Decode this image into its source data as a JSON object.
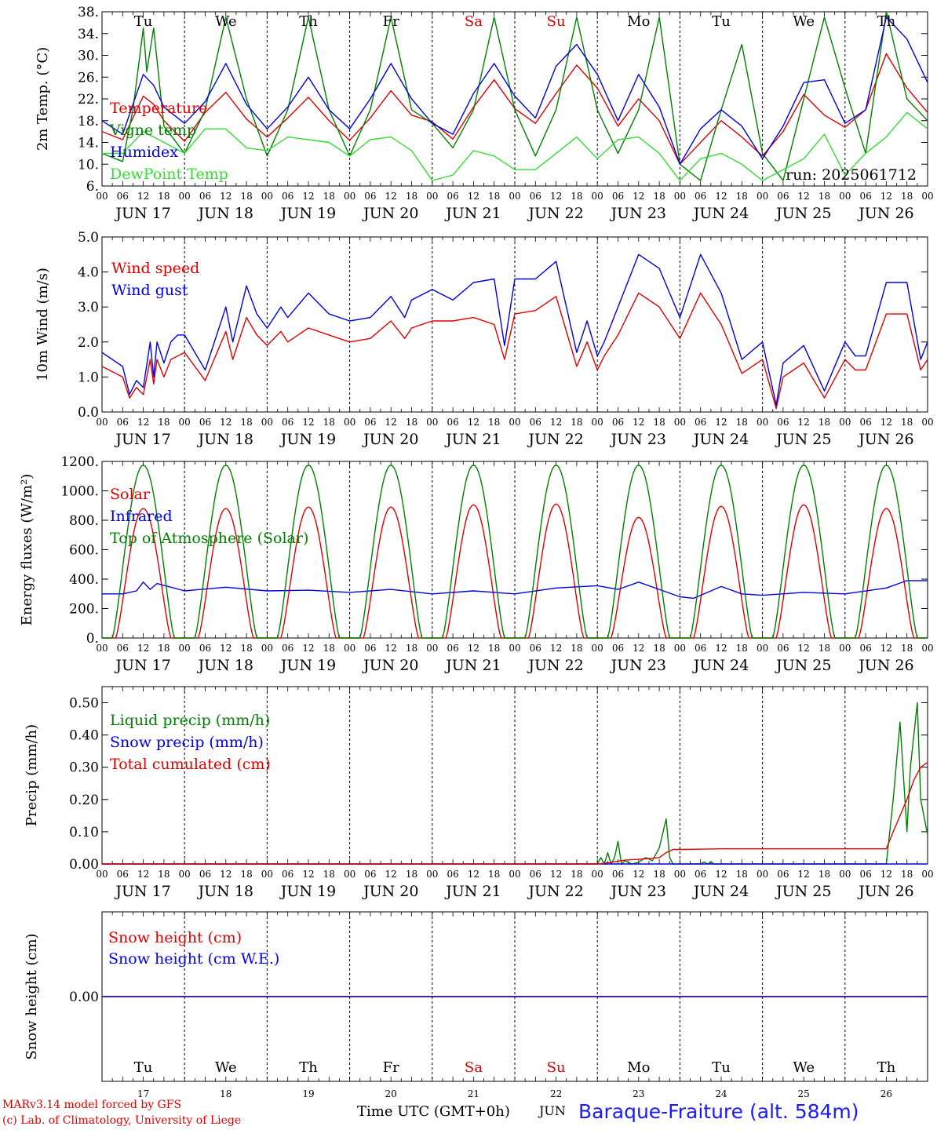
{
  "chart_data": {
    "type": "line",
    "run_label": "run: 2025061712",
    "time_axis": {
      "start_hour": 0,
      "end_hour": 240,
      "hour_tick_labels": [
        "00",
        "06",
        "12",
        "18"
      ],
      "date_labels": [
        "JUN 17",
        "JUN 18",
        "JUN 19",
        "JUN 20",
        "JUN 21",
        "JUN 22",
        "JUN 23",
        "JUN 24",
        "JUN 25",
        "JUN 26"
      ],
      "weekday_labels": [
        "Tu",
        "We",
        "Th",
        "Fr",
        "Sa",
        "Su",
        "Mo",
        "Tu",
        "We",
        "Th"
      ],
      "weekday_colors": [
        "#000000",
        "#000000",
        "#000000",
        "#000000",
        "#e00000",
        "#e00000",
        "#000000",
        "#000000",
        "#000000",
        "#000000"
      ],
      "day_numbers": [
        "17",
        "18",
        "19",
        "20",
        "21",
        "22",
        "23",
        "24",
        "25",
        "26"
      ]
    },
    "panels": [
      {
        "id": "temperature",
        "ylabel": "2m Temp. (°C)",
        "ylim": [
          6,
          38
        ],
        "yticks": [
          6,
          10,
          14,
          18,
          22,
          26,
          30,
          34,
          38
        ],
        "ytick_labels": [
          "6.",
          "10.",
          "14.",
          "18.",
          "22.",
          "26.",
          "30.",
          "34.",
          "38."
        ],
        "series": [
          {
            "name": "Temperature",
            "color": "#e00000",
            "x": [
              0,
              6,
              12,
              15,
              18,
              24,
              30,
              36,
              42,
              48,
              54,
              60,
              66,
              72,
              78,
              84,
              90,
              96,
              102,
              108,
              114,
              120,
              126,
              132,
              138,
              144,
              150,
              156,
              162,
              168,
              174,
              180,
              186,
              192,
              198,
              204,
              210,
              216,
              222,
              228,
              234,
              240
            ],
            "y": [
              16,
              14.5,
              22.5,
              21,
              18,
              14.2,
              19.5,
              23.2,
              18.3,
              15,
              18.5,
              22.3,
              18,
              14.4,
              18.5,
              23.5,
              19,
              17.8,
              14.6,
              20.5,
              25.5,
              20.2,
              17.5,
              23,
              28.2,
              24,
              17,
              22,
              18,
              10,
              14,
              18,
              15,
              11.5,
              16,
              22.8,
              19,
              16.8,
              20,
              30.3,
              24,
              19.5
            ]
          },
          {
            "name": "Vigne temp",
            "color": "#008000",
            "x": [
              0,
              6,
              9,
              12,
              13,
              15,
              18,
              24,
              30,
              36,
              42,
              48,
              54,
              60,
              66,
              72,
              78,
              84,
              90,
              96,
              102,
              108,
              114,
              120,
              126,
              132,
              138,
              144,
              150,
              156,
              162,
              168,
              174,
              180,
              186,
              192,
              198,
              204,
              210,
              216,
              222,
              228,
              234,
              240
            ],
            "y": [
              12,
              10.5,
              20,
              35,
              27,
              35,
              17,
              12,
              20,
              37,
              22,
              11.5,
              20,
              37,
              20,
              11.5,
              20,
              37,
              20,
              17.5,
              13,
              20,
              37,
              20,
              11.5,
              20,
              37,
              20,
              12,
              20,
              37,
              10,
              7,
              20,
              32,
              12,
              7,
              22,
              37,
              24,
              12,
              38,
              22,
              18
            ]
          },
          {
            "name": "Humidex",
            "color": "#0000e0",
            "x": [
              0,
              6,
              12,
              15,
              18,
              24,
              30,
              36,
              42,
              48,
              54,
              60,
              66,
              72,
              78,
              84,
              90,
              96,
              102,
              108,
              114,
              120,
              126,
              132,
              138,
              144,
              150,
              156,
              162,
              168,
              174,
              180,
              186,
              192,
              198,
              204,
              210,
              216,
              222,
              228,
              234,
              240
            ],
            "y": [
              18,
              15.5,
              26.5,
              24.5,
              20.5,
              17.5,
              21.5,
              28.5,
              21,
              16.5,
              20.5,
              26,
              20,
              16.5,
              22,
              28.5,
              22,
              17.5,
              15.5,
              23,
              28.5,
              22.5,
              18.5,
              28,
              32,
              26.5,
              18,
              26.5,
              20.5,
              10,
              16.5,
              20,
              17,
              11,
              17,
              25,
              25.5,
              17.5,
              20,
              37,
              33,
              25
            ]
          },
          {
            "name": "DewPoint Temp",
            "color": "#33dd33",
            "x": [
              0,
              6,
              12,
              18,
              24,
              30,
              36,
              42,
              48,
              54,
              60,
              66,
              72,
              78,
              84,
              90,
              96,
              102,
              108,
              114,
              120,
              126,
              132,
              138,
              144,
              150,
              156,
              162,
              168,
              174,
              180,
              186,
              192,
              198,
              204,
              210,
              216,
              222,
              228,
              234,
              240
            ],
            "y": [
              12,
              12,
              16,
              14,
              12,
              16.5,
              16.5,
              13,
              12.5,
              15,
              14.5,
              14,
              11.5,
              14.5,
              15,
              12.5,
              7,
              8,
              12.5,
              11.5,
              9,
              9,
              12,
              15,
              11,
              14.5,
              15,
              12,
              7,
              11,
              12,
              10,
              7,
              9,
              11,
              15.5,
              8,
              12,
              15,
              19.5,
              16.5
            ]
          }
        ]
      },
      {
        "id": "wind",
        "ylabel": "10m Wind (m/s)",
        "ylim": [
          0,
          5
        ],
        "yticks": [
          0,
          1,
          2,
          3,
          4,
          5
        ],
        "ytick_labels": [
          "0.0",
          "1.0",
          "2.0",
          "3.0",
          "4.0",
          "5.0"
        ],
        "series": [
          {
            "name": "Wind speed",
            "color": "#e00000",
            "x": [
              0,
              6,
              8,
              10,
              12,
              14,
              15,
              16,
              18,
              20,
              22,
              24,
              30,
              36,
              38,
              42,
              45,
              48,
              52,
              54,
              60,
              66,
              72,
              78,
              84,
              88,
              90,
              96,
              102,
              108,
              114,
              117,
              120,
              126,
              132,
              138,
              141,
              144,
              146,
              150,
              156,
              162,
              168,
              174,
              180,
              186,
              192,
              196,
              198,
              204,
              210,
              216,
              219,
              222,
              228,
              234,
              238,
              240
            ],
            "y": [
              1.3,
              1.0,
              0.4,
              0.7,
              0.5,
              1.5,
              0.8,
              1.5,
              1.0,
              1.5,
              1.6,
              1.7,
              0.9,
              2.3,
              1.5,
              2.7,
              2.2,
              1.9,
              2.3,
              2.0,
              2.4,
              2.2,
              2.0,
              2.1,
              2.6,
              2.1,
              2.4,
              2.6,
              2.6,
              2.7,
              2.5,
              1.5,
              2.8,
              2.9,
              3.3,
              1.3,
              2.0,
              1.2,
              1.6,
              2.2,
              3.4,
              3.0,
              2.1,
              3.4,
              2.5,
              1.1,
              1.5,
              0.1,
              1.0,
              1.4,
              0.4,
              1.5,
              1.2,
              1.2,
              2.8,
              2.8,
              1.2,
              1.5
            ]
          },
          {
            "name": "Wind gust",
            "color": "#0000e0",
            "x": [
              0,
              6,
              8,
              10,
              12,
              14,
              15,
              16,
              18,
              20,
              22,
              24,
              30,
              36,
              38,
              42,
              45,
              48,
              52,
              54,
              60,
              66,
              72,
              78,
              84,
              88,
              90,
              96,
              102,
              108,
              114,
              117,
              120,
              126,
              132,
              138,
              141,
              144,
              146,
              150,
              156,
              162,
              168,
              174,
              180,
              186,
              192,
              196,
              198,
              204,
              210,
              216,
              219,
              222,
              228,
              234,
              238,
              240
            ],
            "y": [
              1.7,
              1.3,
              0.5,
              0.9,
              0.7,
              2.0,
              1.0,
              2.0,
              1.4,
              2.0,
              2.2,
              2.2,
              1.2,
              3.0,
              2.0,
              3.6,
              2.8,
              2.4,
              3.0,
              2.7,
              3.4,
              2.8,
              2.6,
              2.7,
              3.3,
              2.7,
              3.2,
              3.5,
              3.2,
              3.7,
              3.8,
              1.9,
              3.8,
              3.8,
              4.3,
              1.7,
              2.6,
              1.6,
              2.0,
              3.0,
              4.5,
              4.1,
              2.7,
              4.5,
              3.4,
              1.5,
              2.0,
              0.2,
              1.4,
              1.9,
              0.6,
              2.0,
              1.6,
              1.6,
              3.7,
              3.7,
              1.5,
              2.0
            ]
          }
        ]
      },
      {
        "id": "energy",
        "ylabel": "Energy fluxes (W/m²)",
        "ylim": [
          0,
          1200
        ],
        "yticks": [
          0,
          200,
          400,
          600,
          800,
          1000,
          1200
        ],
        "ytick_labels": [
          "0.",
          "200.",
          "400.",
          "600.",
          "800.",
          "1000.",
          "1200."
        ],
        "series": [
          {
            "name": "Solar",
            "color": "#e00000",
            "peaks": [
              880,
              880,
              890,
              890,
              905,
              910,
              820,
              895,
              905,
              880
            ],
            "peak_width_hours": 16
          },
          {
            "name": "Infrared",
            "color": "#0000e0",
            "x": [
              0,
              6,
              10,
              12,
              14,
              16,
              24,
              36,
              48,
              60,
              72,
              84,
              96,
              108,
              120,
              132,
              144,
              150,
              156,
              162,
              168,
              172,
              180,
              186,
              192,
              204,
              216,
              228,
              234,
              240
            ],
            "y": [
              300,
              300,
              320,
              380,
              330,
              370,
              320,
              345,
              320,
              325,
              310,
              330,
              300,
              320,
              300,
              340,
              355,
              330,
              380,
              330,
              280,
              270,
              350,
              300,
              290,
              310,
              300,
              340,
              390,
              390
            ]
          },
          {
            "name": "Top of Atmosphere (Solar)",
            "color": "#008000",
            "peaks": [
              1175,
              1175,
              1175,
              1175,
              1175,
              1175,
              1175,
              1175,
              1175,
              1175
            ],
            "peak_width_hours": 18
          }
        ]
      },
      {
        "id": "precip",
        "ylabel": "Precip (mm/h)",
        "ylim": [
          0,
          0.55
        ],
        "yticks": [
          0,
          0.1,
          0.2,
          0.3,
          0.4,
          0.5
        ],
        "ytick_labels": [
          "0.00",
          "0.10",
          "0.20",
          "0.30",
          "0.40",
          "0.50"
        ],
        "series": [
          {
            "name": "Liquid precip (mm/h)",
            "color": "#008000",
            "x": [
              0,
              144,
              145,
              146,
              147,
              148,
              149,
              150,
              151,
              152,
              154,
              156,
              158,
              160,
              162,
              164,
              165,
              166,
              168,
              174,
              175,
              176,
              177,
              178,
              179,
              180,
              216,
              228,
              230,
              232,
              234,
              235,
              237,
              238,
              240
            ],
            "y": [
              0,
              0,
              0.02,
              0,
              0.035,
              0,
              0.02,
              0.07,
              0,
              0.01,
              0,
              0.005,
              0.02,
              0.01,
              0.05,
              0.14,
              0.02,
              0,
              0,
              0,
              0.006,
              0,
              0.006,
              0,
              0,
              0,
              0,
              0,
              0.2,
              0.44,
              0.1,
              0.3,
              0.5,
              0.2,
              0.09
            ]
          },
          {
            "name": "Snow precip (mm/h)",
            "color": "#0000e0",
            "x": [
              0,
              240
            ],
            "y": [
              0,
              0
            ]
          },
          {
            "name": "Total cumulated (cm)",
            "color": "#e00000",
            "x": [
              0,
              144,
              148,
              152,
              158,
              162,
              164,
              166,
              168,
              180,
              192,
              228,
              230,
              232,
              234,
              236,
              238,
              240
            ],
            "y": [
              0,
              0,
              0.005,
              0.012,
              0.016,
              0.02,
              0.035,
              0.045,
              0.045,
              0.047,
              0.047,
              0.047,
              0.1,
              0.15,
              0.2,
              0.26,
              0.3,
              0.315
            ]
          }
        ]
      },
      {
        "id": "snow",
        "ylabel": "Snow height (cm)",
        "ylim": [
          -0.5,
          0.5
        ],
        "yticks": [
          0
        ],
        "ytick_labels": [
          "0.00"
        ],
        "series": [
          {
            "name": "Snow height (cm)",
            "color": "#e00000",
            "x": [
              0,
              240
            ],
            "y": [
              0,
              0
            ]
          },
          {
            "name": "Snow height (cm W.E.)",
            "color": "#0000e0",
            "x": [
              0,
              240
            ],
            "y": [
              0,
              0
            ]
          }
        ]
      }
    ]
  },
  "footer": {
    "credit_line1": "MARv3.14 model forced by GFS",
    "credit_line2": "(c) Lab. of Climatology, University of Liege",
    "time_label": "Time UTC (GMT+0h)",
    "month": "JUN",
    "station": "Baraque-Fraiture (alt. 584m)"
  }
}
